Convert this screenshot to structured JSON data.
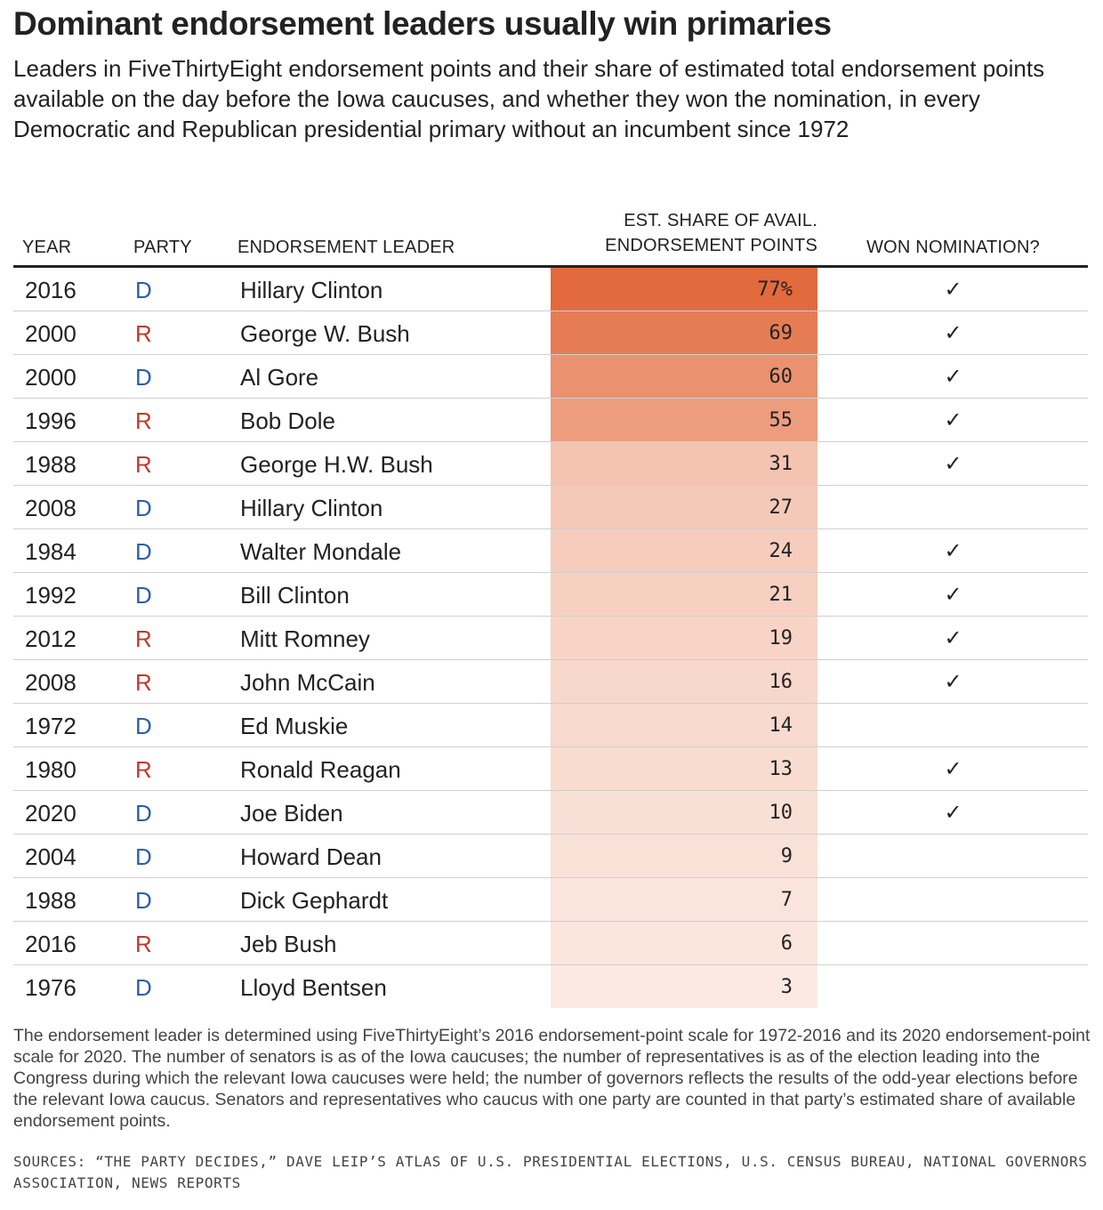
{
  "title": "Dominant endorsement leaders usually win primaries",
  "subtitle": "Leaders in FiveThirtyEight endorsement points and their share of estimated total endorsement points available on the day before the Iowa caucuses, and whether they won the nomination, in every Democratic and Republican presidential primary without an incumbent since 1972",
  "columns": {
    "year": "YEAR",
    "party": "PARTY",
    "leader": "ENDORSEMENT LEADER",
    "share_line1": "EST. SHARE OF AVAIL.",
    "share_line2": "ENDORSEMENT POINTS",
    "won": "WON NOMINATION?"
  },
  "colors": {
    "democrat": "#2b5fa6",
    "republican": "#c0392b",
    "heat_strong": "#e36a3c",
    "heat_weak": "#fdf4f0"
  },
  "check_mark": "✓",
  "chart_data": {
    "type": "table",
    "title": "Dominant endorsement leaders usually win primaries",
    "value_unit": "%",
    "rows": [
      {
        "year": "2016",
        "party": "D",
        "leader": "Hillary Clinton",
        "share": 77,
        "share_label": "77%",
        "won": true
      },
      {
        "year": "2000",
        "party": "R",
        "leader": "George W. Bush",
        "share": 69,
        "share_label": "69",
        "won": true
      },
      {
        "year": "2000",
        "party": "D",
        "leader": "Al Gore",
        "share": 60,
        "share_label": "60",
        "won": true
      },
      {
        "year": "1996",
        "party": "R",
        "leader": "Bob Dole",
        "share": 55,
        "share_label": "55",
        "won": true
      },
      {
        "year": "1988",
        "party": "R",
        "leader": "George H.W. Bush",
        "share": 31,
        "share_label": "31",
        "won": true
      },
      {
        "year": "2008",
        "party": "D",
        "leader": "Hillary Clinton",
        "share": 27,
        "share_label": "27",
        "won": false
      },
      {
        "year": "1984",
        "party": "D",
        "leader": "Walter Mondale",
        "share": 24,
        "share_label": "24",
        "won": true
      },
      {
        "year": "1992",
        "party": "D",
        "leader": "Bill Clinton",
        "share": 21,
        "share_label": "21",
        "won": true
      },
      {
        "year": "2012",
        "party": "R",
        "leader": "Mitt Romney",
        "share": 19,
        "share_label": "19",
        "won": true
      },
      {
        "year": "2008",
        "party": "R",
        "leader": "John McCain",
        "share": 16,
        "share_label": "16",
        "won": true
      },
      {
        "year": "1972",
        "party": "D",
        "leader": "Ed Muskie",
        "share": 14,
        "share_label": "14",
        "won": false
      },
      {
        "year": "1980",
        "party": "R",
        "leader": "Ronald Reagan",
        "share": 13,
        "share_label": "13",
        "won": true
      },
      {
        "year": "2020",
        "party": "D",
        "leader": "Joe Biden",
        "share": 10,
        "share_label": "10",
        "won": true
      },
      {
        "year": "2004",
        "party": "D",
        "leader": "Howard Dean",
        "share": 9,
        "share_label": "9",
        "won": false
      },
      {
        "year": "1988",
        "party": "D",
        "leader": "Dick Gephardt",
        "share": 7,
        "share_label": "7",
        "won": false
      },
      {
        "year": "2016",
        "party": "R",
        "leader": "Jeb Bush",
        "share": 6,
        "share_label": "6",
        "won": false
      },
      {
        "year": "1976",
        "party": "D",
        "leader": "Lloyd Bentsen",
        "share": 3,
        "share_label": "3",
        "won": false
      }
    ]
  },
  "footnote": "The endorsement leader is determined using FiveThirtyEight’s 2016 endorsement-point scale for 1972-2016 and its 2020 endorsement-point scale for 2020. The number of senators is as of the Iowa caucuses; the number of representatives is as of the election leading into the Congress during which the relevant Iowa caucuses were held; the number of governors reflects the results of the odd-year elections before the relevant Iowa caucus. Senators and representatives who caucus with one party are counted in that party’s estimated share of available endorsement points.",
  "sources": "SOURCES: “THE PARTY DECIDES,” DAVE LEIP’S ATLAS OF U.S. PRESIDENTIAL ELECTIONS, U.S. CENSUS BUREAU, NATIONAL GOVERNORS ASSOCIATION, NEWS REPORTS"
}
